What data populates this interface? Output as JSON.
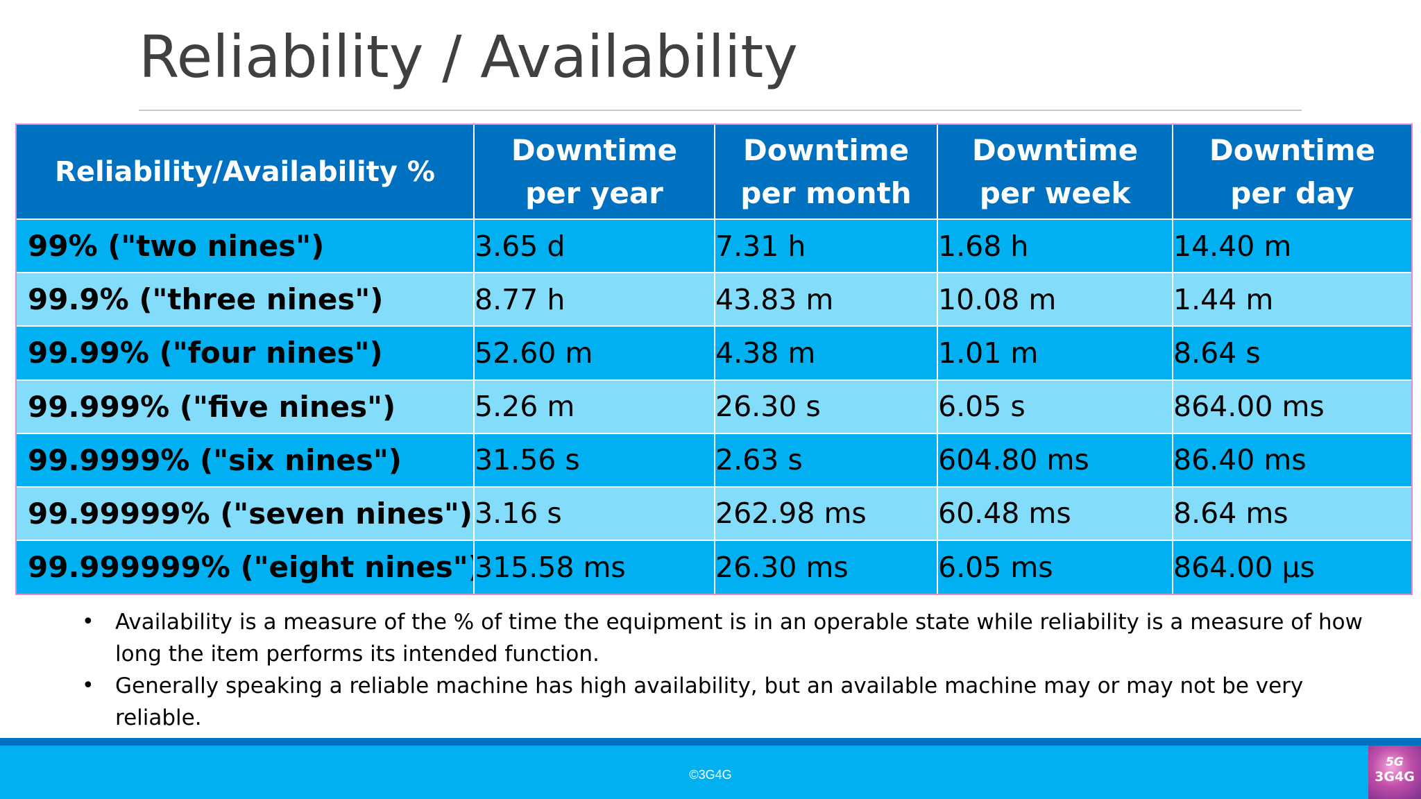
{
  "slide": {
    "title": "Reliability / Availability"
  },
  "table": {
    "headers": [
      {
        "line1": "Reliability/Availability %",
        "line2": ""
      },
      {
        "line1": "Downtime",
        "line2": "per year"
      },
      {
        "line1": "Downtime",
        "line2": "per month"
      },
      {
        "line1": "Downtime",
        "line2": "per week"
      },
      {
        "line1": "Downtime",
        "line2": "per day"
      }
    ],
    "rows": [
      [
        "99% (\"two nines\")",
        "3.65 d",
        "7.31 h",
        "1.68 h",
        "14.40 m"
      ],
      [
        "99.9% (\"three nines\")",
        "8.77 h",
        "43.83 m",
        "10.08 m",
        "1.44 m"
      ],
      [
        "99.99% (\"four nines\")",
        "52.60 m",
        "4.38 m",
        "1.01 m",
        "8.64 s"
      ],
      [
        "99.999% (\"five nines\")",
        "5.26 m",
        "26.30 s",
        "6.05 s",
        "864.00 ms"
      ],
      [
        "99.9999% (\"six nines\")",
        "31.56 s",
        "2.63 s",
        "604.80 ms",
        "86.40 ms"
      ],
      [
        "99.99999% (\"seven nines\")",
        "3.16 s",
        "262.98 ms",
        "60.48 ms",
        "8.64 ms"
      ],
      [
        "99.999999% (\"eight nines\")",
        "315.58 ms",
        "26.30 ms",
        "6.05 ms",
        "864.00 µs"
      ]
    ]
  },
  "notes": [
    "Availability is a measure of the % of time the equipment is in an operable state while reliability is a measure of how long the item performs its intended function.",
    "Generally speaking a reliable machine has high availability, but an available machine may or may not be very reliable."
  ],
  "footer": {
    "copyright": "©3G4G",
    "logo_top": "5G",
    "logo_bottom": "3G4G"
  },
  "colors": {
    "header_bg": "#0070c0",
    "row_dark": "#00b0f0",
    "row_light": "#84dcfb",
    "table_border": "#e58bd6",
    "title_text": "#404040"
  }
}
